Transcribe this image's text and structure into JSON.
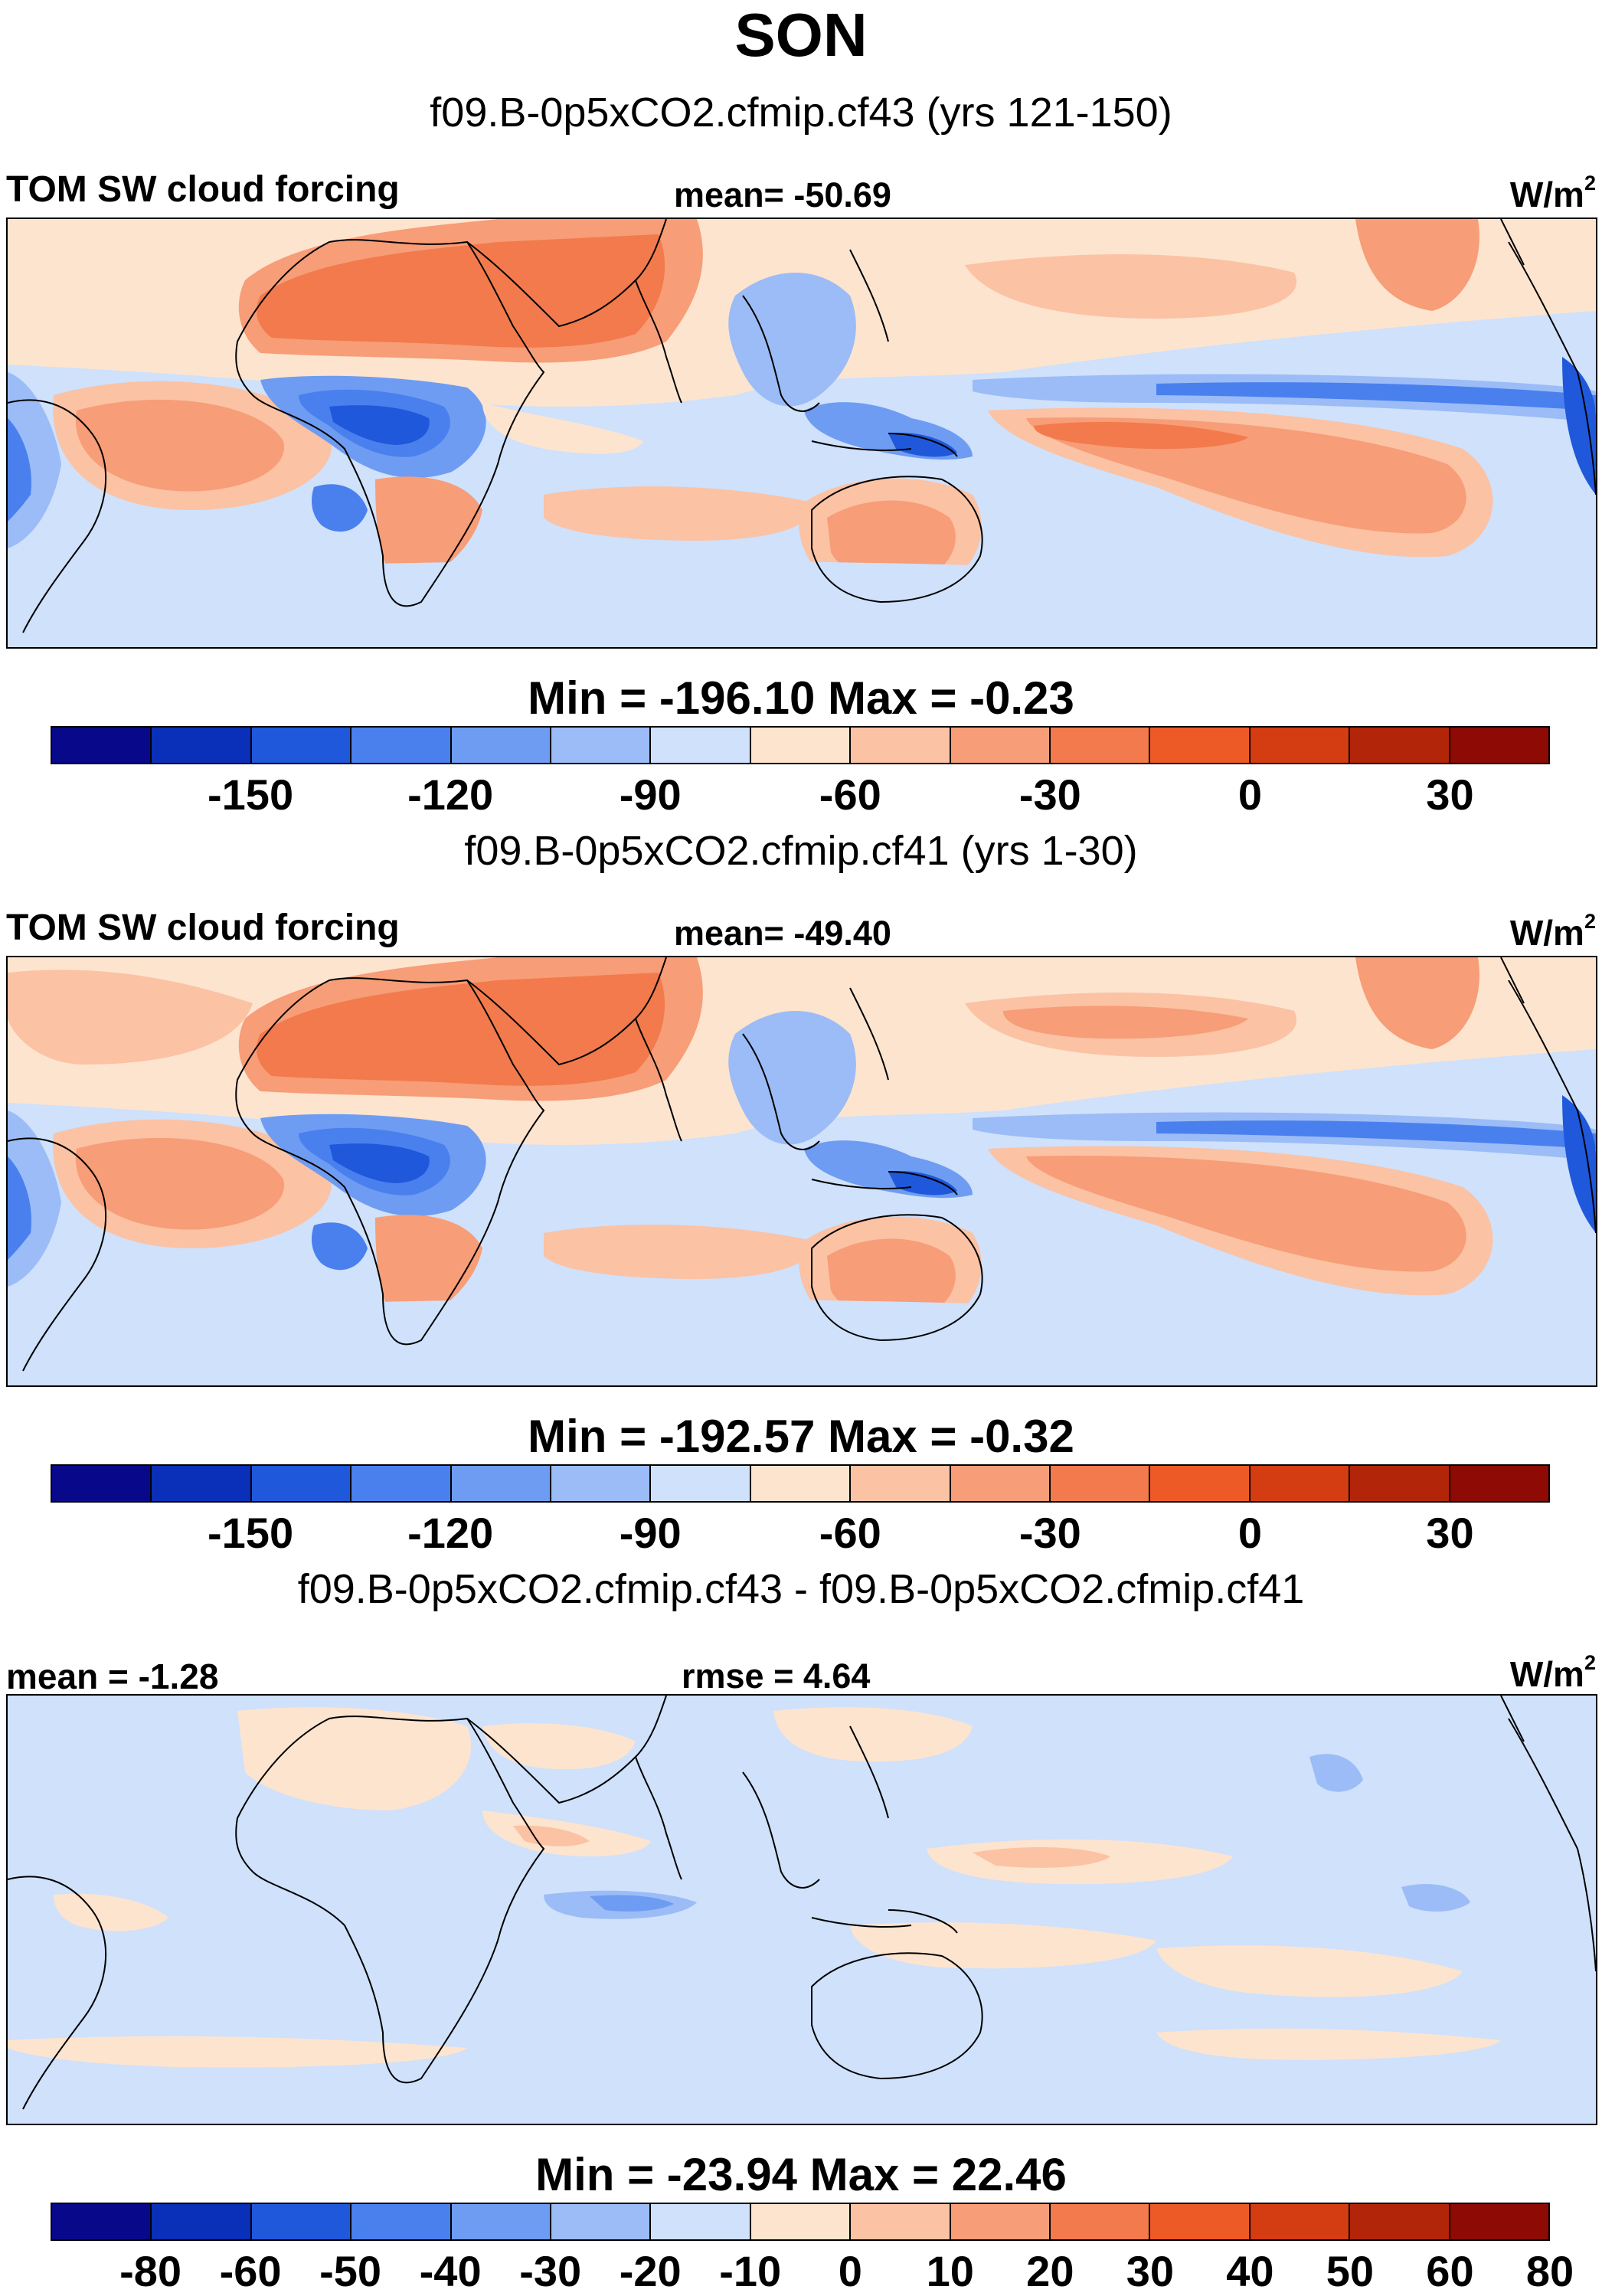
{
  "season": "SON",
  "colors": {
    "scale": [
      "#08088a",
      "#0a2fb8",
      "#1f58db",
      "#4a80ee",
      "#6e9cf2",
      "#9bbcf6",
      "#cfe1fb",
      "#fde4cf",
      "#fbc2a4",
      "#f79d77",
      "#f27a4c",
      "#ee5a26",
      "#d43c11",
      "#b22509",
      "#8d0a05"
    ],
    "land_outline": "#000000"
  },
  "panels": [
    {
      "case_title": "f09.B-0p5xCO2.cfmip.cf43 (yrs 121-150)",
      "left_label": "TOM SW cloud forcing",
      "center_label": "mean= -50.69",
      "units_base": "W/m",
      "units_exp": "2",
      "minmax": "Min = -196.10 Max =  -0.23",
      "colorbar_labels": [
        "-150",
        "-120",
        "-90",
        "-60",
        "-30",
        "0",
        "30"
      ]
    },
    {
      "case_title": "f09.B-0p5xCO2.cfmip.cf41 (yrs 1-30)",
      "left_label": "TOM SW cloud forcing",
      "center_label": "mean= -49.40",
      "units_base": "W/m",
      "units_exp": "2",
      "minmax": "Min = -192.57 Max =  -0.32",
      "colorbar_labels": [
        "-150",
        "-120",
        "-90",
        "-60",
        "-30",
        "0",
        "30"
      ]
    },
    {
      "case_title": "f09.B-0p5xCO2.cfmip.cf43 - f09.B-0p5xCO2.cfmip.cf41",
      "left_label": "mean =  -1.28",
      "center_label": "rmse =   4.64",
      "units_base": "W/m",
      "units_exp": "2",
      "minmax": "Min = -23.94 Max =  22.46",
      "colorbar_labels": [
        "-80",
        "-60",
        "-50",
        "-40",
        "-30",
        "-20",
        "-10",
        "0",
        "10",
        "20",
        "30",
        "40",
        "50",
        "60",
        "80"
      ]
    }
  ]
}
